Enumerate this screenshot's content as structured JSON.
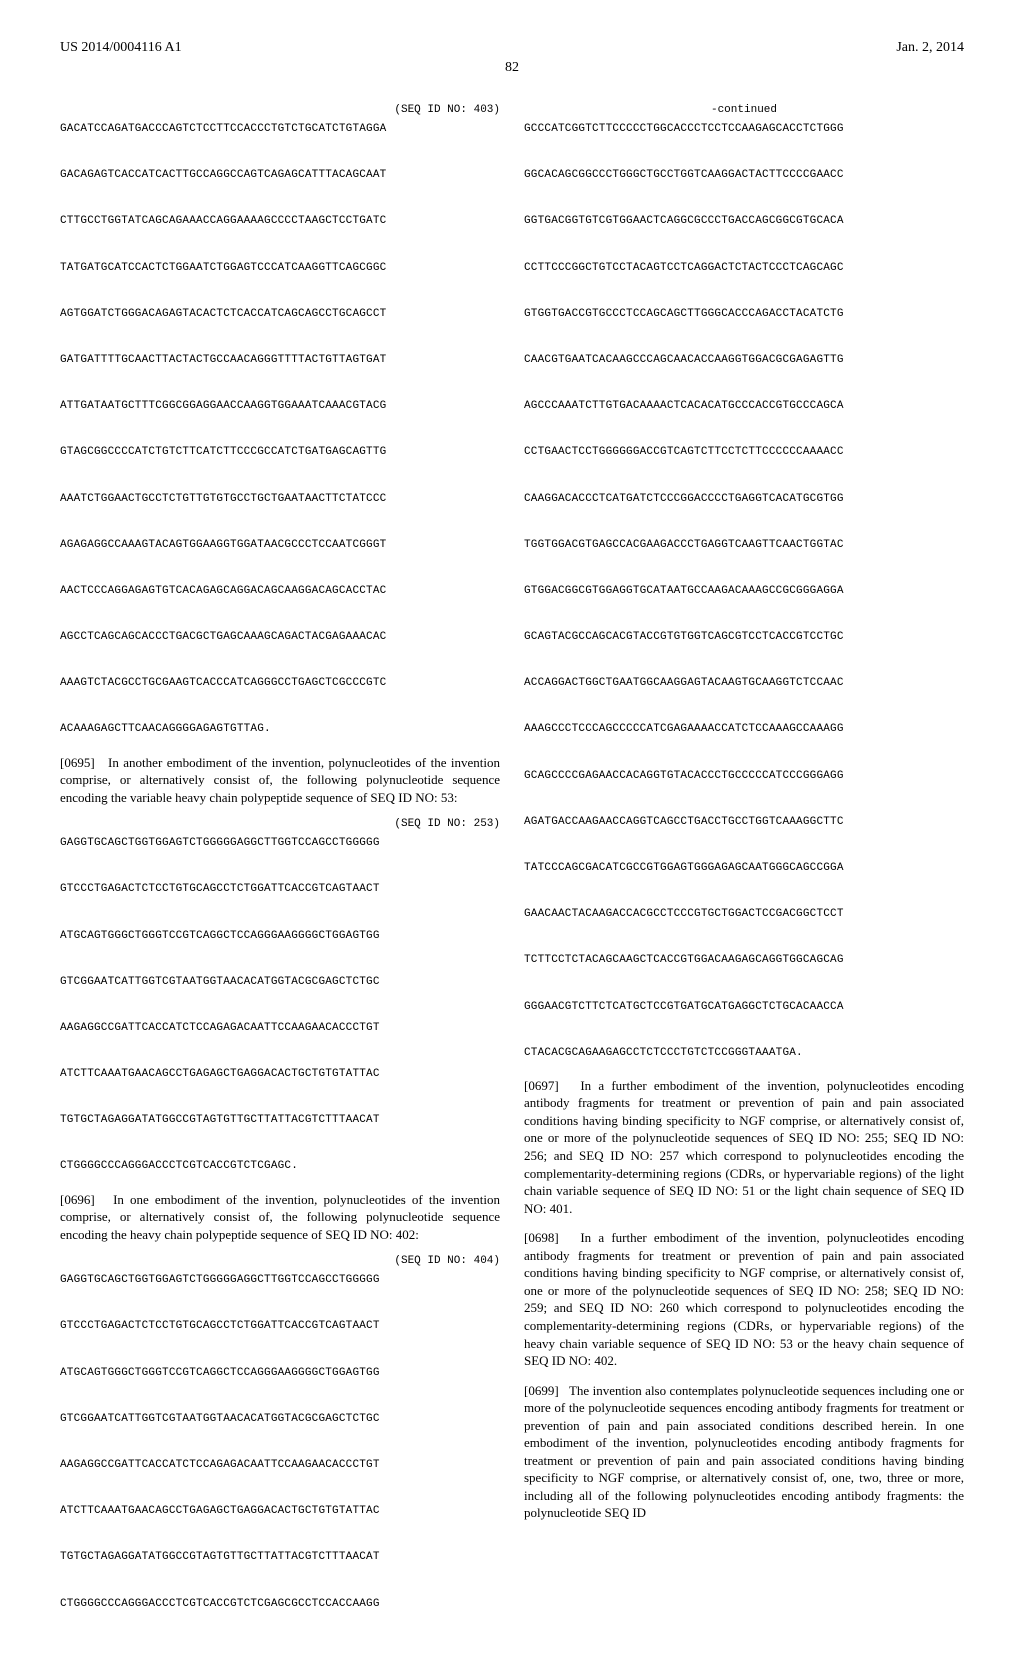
{
  "header": {
    "pub_number": "US 2014/0004116 A1",
    "date": "Jan. 2, 2014",
    "page": "82"
  },
  "left": {
    "seq403": {
      "label": "(SEQ ID NO: 403)",
      "text": "GACATCCAGATGACCCAGTCTCCTTCCACCCTGTCTGCATCTGTAGGA\n\nGACAGAGTCACCATCACTTGCCAGGCCAGTCAGAGCATTTACAGCAAT\n\nCTTGCCTGGTATCAGCAGAAACCAGGAAAAGCCCCTAAGCTCCTGATC\n\nTATGATGCATCCACTCTGGAATCTGGAGTCCCATCAAGGTTCAGCGGC\n\nAGTGGATCTGGGACAGAGTACACTCTCACCATCAGCAGCCTGCAGCCT\n\nGATGATTTTGCAACTTACTACTGCCAACAGGGTTTTACTGTTAGTGAT\n\nATTGATAATGCTTTCGGCGGAGGAACCAAGGTGGAAATCAAACGTACG\n\nGTAGCGGCCCCATCTGTCTTCATCTTCCCGCCATCTGATGAGCAGTTG\n\nAAATCTGGAACTGCCTCTGTTGTGTGCCTGCTGAATAACTTCTATCCC\n\nAGAGAGGCCAAAGTACAGTGGAAGGTGGATAACGCCCTCCAATCGGGT\n\nAACTCCCAGGAGAGTGTCACAGAGCAGGACAGCAAGGACAGCACCTAC\n\nAGCCTCAGCAGCACCCTGACGCTGAGCAAAGCAGACTACGAGAAACAC\n\nAAAGTCTACGCCTGCGAAGTCACCCATCAGGGCCTGAGCTCGCCCGTC\n\nACAAAGAGCTTCAACAGGGGAGAGTGTTAG."
    },
    "para0695": {
      "num": "[0695]",
      "text": "In another embodiment of the invention, polynucleotides of the invention comprise, or alternatively consist of, the following polynucleotide sequence encoding the variable heavy chain polypeptide sequence of SEQ ID NO: 53:"
    },
    "seq253": {
      "label": "(SEQ ID NO: 253)",
      "text": "GAGGTGCAGCTGGTGGAGTCTGGGGGAGGCTTGGTCCAGCCTGGGGG\n\nGTCCCTGAGACTCTCCTGTGCAGCCTCTGGATTCACCGTCAGTAACT\n\nATGCAGTGGGCTGGGTCCGTCAGGCTCCAGGGAAGGGGCTGGAGTGG\n\nGTCGGAATCATTGGTCGTAATGGTAACACATGGTACGCGAGCTCTGC\n\nAAGAGGCCGATTCACCATCTCCAGAGACAATTCCAAGAACACCCTGT\n\nATCTTCAAATGAACAGCCTGAGAGCTGAGGACACTGCTGTGTATTAC\n\nTGTGCTAGAGGATATGGCCGTAGTGTTGCTTATTACGTCTTTAACAT\n\nCTGGGGCCCAGGGACCCTCGTCACCGTCTCGAGC."
    },
    "para0696": {
      "num": "[0696]",
      "text": "In one embodiment of the invention, polynucleotides of the invention comprise, or alternatively consist of, the following polynucleotide sequence encoding the heavy chain polypeptide sequence of SEQ ID NO: 402:"
    },
    "seq404": {
      "label": "(SEQ ID NO: 404)",
      "text": "GAGGTGCAGCTGGTGGAGTCTGGGGGAGGCTTGGTCCAGCCTGGGGG\n\nGTCCCTGAGACTCTCCTGTGCAGCCTCTGGATTCACCGTCAGTAACT\n\nATGCAGTGGGCTGGGTCCGTCAGGCTCCAGGGAAGGGGCTGGAGTGG\n\nGTCGGAATCATTGGTCGTAATGGTAACACATGGTACGCGAGCTCTGC\n\nAAGAGGCCGATTCACCATCTCCAGAGACAATTCCAAGAACACCCTGT\n\nATCTTCAAATGAACAGCCTGAGAGCTGAGGACACTGCTGTGTATTAC\n\nTGTGCTAGAGGATATGGCCGTAGTGTTGCTTATTACGTCTTTAACAT\n\nCTGGGGCCCAGGGACCCTCGTCACCGTCTCGAGCGCCTCCACCAAGG"
    }
  },
  "right": {
    "continued_label": "-continued",
    "seq_cont": "GCCCATCGGTCTTCCCCCTGGCACCCTCCTCCAAGAGCACCTCTGGG\n\nGGCACAGCGGCCCTGGGCTGCCTGGTCAAGGACTACTTCCCCGAACC\n\nGGTGACGGTGTCGTGGAACTCAGGCGCCCTGACCAGCGGCGTGCACA\n\nCCTTCCCGGCTGTCCTACAGTCCTCAGGACTCTACTCCCTCAGCAGC\n\nGTGGTGACCGTGCCCTCCAGCAGCTTGGGCACCCAGACCTACATCTG\n\nCAACGTGAATCACAAGCCCAGCAACACCAAGGTGGACGCGAGAGTTG\n\nAGCCCAAATCTTGTGACAAAACTCACACATGCCCACCGTGCCCAGCA\n\nCCTGAACTCCTGGGGGGACCGTCAGTCTTCCTCTTCCCCCCAAAACC\n\nCAAGGACACCCTCATGATCTCCCGGACCCCTGAGGTCACATGCGTGG\n\nTGGTGGACGTGAGCCACGAAGACCCTGAGGTCAAGTTCAACTGGTAC\n\nGTGGACGGCGTGGAGGTGCATAATGCCAAGACAAAGCCGCGGGAGGA\n\nGCAGTACGCCAGCACGTACCGTGTGGTCAGCGTCCTCACCGTCCTGC\n\nACCAGGACTGGCTGAATGGCAAGGAGTACAAGTGCAAGGTCTCCAAC\n\nAAAGCCCTCCCAGCCCCCATCGAGAAAACCATCTCCAAAGCCAAAGG\n\nGCAGCCCCGAGAACCACAGGTGTACACCCTGCCCCCATCCCGGGAGG\n\nAGATGACCAAGAACCAGGTCAGCCTGACCTGCCTGGTCAAAGGCTTC\n\nTATCCCAGCGACATCGCCGTGGAGTGGGAGAGCAATGGGCAGCCGGA\n\nGAACAACTACAAGACCACGCCTCCCGTGCTGGACTCCGACGGCTCCT\n\nTCTTCCTCTACAGCAAGCTCACCGTGGACAAGAGCAGGTGGCAGCAG\n\nGGGAACGTCTTCTCATGCTCCGTGATGCATGAGGCTCTGCACAACCA\n\nCTACACGCAGAAGAGCCTCTCCCTGTCTCCGGGTAAATGA.",
    "para0697": {
      "num": "[0697]",
      "text": "In a further embodiment of the invention, polynucleotides encoding antibody fragments for treatment or prevention of pain and pain associated conditions having binding specificity to NGF comprise, or alternatively consist of, one or more of the polynucleotide sequences of SEQ ID NO: 255; SEQ ID NO: 256; and SEQ ID NO: 257 which correspond to polynucleotides encoding the complementarity-determining regions (CDRs, or hypervariable regions) of the light chain variable sequence of SEQ ID NO: 51 or the light chain sequence of SEQ ID NO: 401."
    },
    "para0698": {
      "num": "[0698]",
      "text": "In a further embodiment of the invention, polynucleotides encoding antibody fragments for treatment or prevention of pain and pain associated conditions having binding specificity to NGF comprise, or alternatively consist of, one or more of the polynucleotide sequences of SEQ ID NO: 258; SEQ ID NO: 259; and SEQ ID NO: 260 which correspond to polynucleotides encoding the complementarity-determining regions (CDRs, or hypervariable regions) of the heavy chain variable sequence of SEQ ID NO: 53 or the heavy chain sequence of SEQ ID NO: 402."
    },
    "para0699": {
      "num": "[0699]",
      "text": "The invention also contemplates polynucleotide sequences including one or more of the polynucleotide sequences encoding antibody fragments for treatment or prevention of pain and pain associated conditions described herein. In one embodiment of the invention, polynucleotides encoding antibody fragments for treatment or prevention of pain and pain associated conditions having binding specificity to NGF comprise, or alternatively consist of, one, two, three or more, including all of the following polynucleotides encoding antibody fragments: the polynucleotide SEQ ID"
    }
  }
}
